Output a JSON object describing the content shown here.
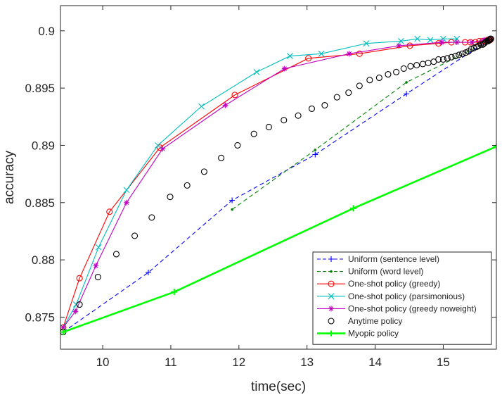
{
  "chart_data": {
    "type": "line",
    "title": "",
    "xlabel": "time(sec)",
    "ylabel": "accuracy",
    "xlim": [
      9.38,
      15.78
    ],
    "ylim": [
      0.8722,
      0.9022
    ],
    "xticks": [
      10,
      11,
      12,
      13,
      14,
      15
    ],
    "yticks": [
      0.875,
      0.88,
      0.885,
      0.89,
      0.895,
      0.9
    ],
    "xtick_labels": [
      "10",
      "11",
      "12",
      "13",
      "14",
      "15"
    ],
    "ytick_labels": [
      "0.875",
      "0.88",
      "0.885",
      "0.89",
      "0.895",
      "0.9"
    ],
    "grid": false,
    "legend_position": "bottom-right",
    "series": [
      {
        "name": "Uniform (sentence level)",
        "color": "#0000ff",
        "dash": "dashed",
        "marker": "plus",
        "x": [
          9.42,
          10.67,
          11.9,
          13.12,
          14.46,
          15.7
        ],
        "y": [
          0.8737,
          0.8789,
          0.8852,
          0.8892,
          0.8945,
          0.8993
        ]
      },
      {
        "name": "Uniform (word level)",
        "color": "#008000",
        "dash": "dashed",
        "marker": "dot",
        "x": [
          11.9,
          13.12,
          14.46,
          15.7
        ],
        "y": [
          0.8844,
          0.8896,
          0.8955,
          0.8992
        ]
      },
      {
        "name": "One-shot policy (greedy)",
        "color": "#ff0000",
        "dash": "solid",
        "marker": "circle",
        "x": [
          9.42,
          9.66,
          10.1,
          10.84,
          11.94,
          13.02,
          13.77,
          14.51,
          14.93,
          15.12,
          15.32,
          15.4,
          15.47,
          15.53,
          15.58,
          15.62,
          15.65,
          15.67,
          15.69,
          15.7
        ],
        "y": [
          0.8741,
          0.8784,
          0.8842,
          0.8898,
          0.8944,
          0.8976,
          0.898,
          0.8987,
          0.8989,
          0.899,
          0.899,
          0.899,
          0.899,
          0.8991,
          0.8991,
          0.8991,
          0.8992,
          0.8992,
          0.8992,
          0.8993
        ]
      },
      {
        "name": "One-shot policy (parsimonious)",
        "color": "#00bfbf",
        "dash": "solid",
        "marker": "x",
        "x": [
          9.42,
          9.61,
          9.94,
          10.35,
          10.81,
          11.45,
          12.26,
          12.75,
          13.21,
          13.87,
          14.38,
          14.62,
          14.81,
          15.0,
          15.2
        ],
        "y": [
          0.8741,
          0.8761,
          0.8811,
          0.8861,
          0.89,
          0.8934,
          0.8964,
          0.8978,
          0.898,
          0.8989,
          0.8991,
          0.8993,
          0.8992,
          0.8993,
          0.8993
        ]
      },
      {
        "name": "One-shot policy (greedy noweight)",
        "color": "#bf00bf",
        "dash": "solid",
        "marker": "asterisk",
        "x": [
          9.42,
          9.6,
          9.9,
          10.35,
          10.88,
          11.8,
          12.67,
          13.62,
          14.35,
          14.98,
          15.2,
          15.42,
          15.6
        ],
        "y": [
          0.8741,
          0.8755,
          0.8795,
          0.885,
          0.8897,
          0.8935,
          0.8967,
          0.898,
          0.8987,
          0.899,
          0.899,
          0.899,
          0.8992
        ]
      },
      {
        "name": "Anytime policy",
        "color": "#000000",
        "dash": "none",
        "marker": "circle",
        "x": [
          9.42,
          9.66,
          9.93,
          10.2,
          10.47,
          10.72,
          10.99,
          11.24,
          11.49,
          11.74,
          11.98,
          12.22,
          12.44,
          12.66,
          12.87,
          13.07,
          13.26,
          13.44,
          13.61,
          13.77,
          13.92,
          14.06,
          14.19,
          14.31,
          14.42,
          14.52,
          14.61,
          14.7,
          14.78,
          14.86,
          14.93,
          15.0,
          15.06,
          15.12,
          15.18,
          15.23,
          15.28,
          15.33,
          15.37,
          15.41,
          15.45,
          15.49,
          15.52,
          15.55,
          15.58,
          15.6,
          15.62,
          15.64,
          15.66,
          15.67,
          15.68,
          15.69,
          15.7
        ],
        "y": [
          0.8737,
          0.8761,
          0.8785,
          0.8805,
          0.8821,
          0.8837,
          0.8855,
          0.8865,
          0.8877,
          0.8889,
          0.89,
          0.891,
          0.8916,
          0.8922,
          0.8926,
          0.8932,
          0.8935,
          0.8942,
          0.8946,
          0.8952,
          0.8957,
          0.8959,
          0.8962,
          0.8964,
          0.8967,
          0.8969,
          0.897,
          0.8971,
          0.8972,
          0.8973,
          0.8975,
          0.8975,
          0.8976,
          0.8977,
          0.8978,
          0.8979,
          0.898,
          0.8981,
          0.8982,
          0.8984,
          0.8985,
          0.8986,
          0.8987,
          0.8988,
          0.8988,
          0.8989,
          0.899,
          0.8991,
          0.8991,
          0.8992,
          0.8992,
          0.8993,
          0.8993
        ]
      },
      {
        "name": "Myopic policy",
        "color": "#00ff00",
        "dash": "solid",
        "marker": "plus",
        "x": [
          9.42,
          11.05,
          13.68,
          15.78
        ],
        "y": [
          0.8737,
          0.8772,
          0.8845,
          0.8899
        ]
      }
    ]
  }
}
